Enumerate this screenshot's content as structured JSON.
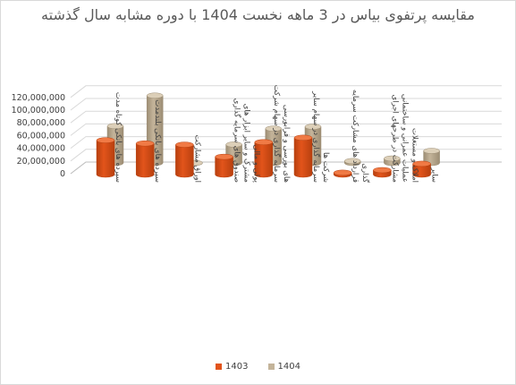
{
  "chart_data": {
    "type": "bar",
    "title": "مقایسه پرتفوی بیاس در 3 ماهه نخست 1404 با دوره مشابه سال گذشته",
    "categories": [
      "سپرده های بانکی کوتاه مدت",
      "سپرده های بانکی بلندمدت",
      "اوراق مشارکت",
      "صندوق های سرمایه گذاری مشترک و سایر ابزار های پولی و مالی",
      "سرمایه گذاری در سهام شرکت های بورسی و فرابورسی",
      "سرمایه گذاری در سهام سایر شرکت ها",
      "قرارداد های مشارکت سرمایه گذاری",
      "مشارکت در طرحهای اجرای عملیات عمرانی و ساختمانی املاک و مستغلات",
      "سایر"
    ],
    "series": [
      {
        "name": "1403",
        "color": "#E2541B",
        "values": [
          54000000,
          49000000,
          47000000,
          28000000,
          51000000,
          58000000,
          3000000,
          7000000,
          17000000
        ]
      },
      {
        "name": "1404",
        "color": "#C4B49A",
        "values": [
          58000000,
          106000000,
          0,
          29000000,
          54000000,
          57000000,
          3000000,
          7000000,
          19000000
        ]
      }
    ],
    "yticks": [
      "0",
      "20,000,000",
      "40,000,000",
      "60,000,000",
      "80,000,000",
      "100,000,000",
      "120,000,000"
    ],
    "ylim": [
      0,
      120000000
    ],
    "legend_position": "bottom",
    "grid": true
  }
}
